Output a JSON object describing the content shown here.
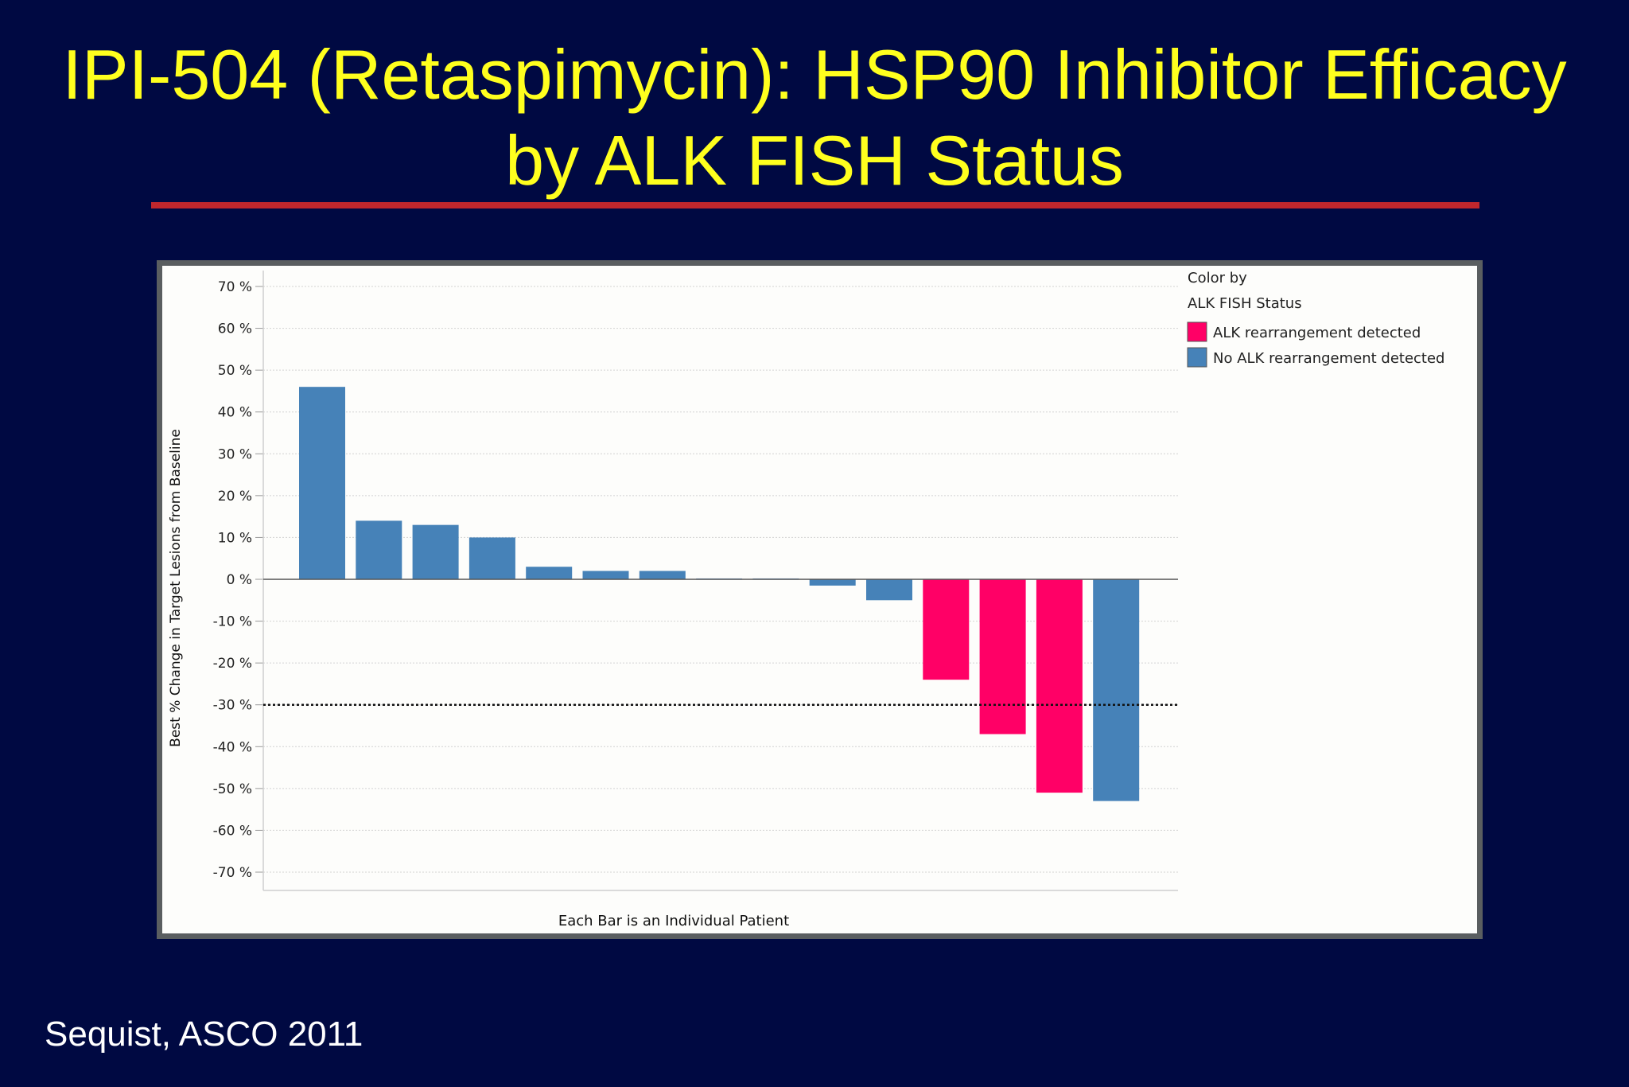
{
  "slide": {
    "title_line1": "IPI-504 (Retaspimycin): HSP90 Inhibitor Efficacy",
    "title_line2": "by ALK FISH Status",
    "citation": "Sequist, ASCO 2011"
  },
  "colors": {
    "background": "#000942",
    "title": "#ffff1e",
    "rule": "#c0272d",
    "alk_detected": "#ff0066",
    "no_alk_detected": "#4682b8"
  },
  "chart_data": {
    "type": "bar",
    "xlabel": "Each Bar is an Individual Patient",
    "ylabel": "Best % Change in Target Lesions from Baseline",
    "ylim": [
      -70,
      70
    ],
    "yticks": [
      "70 %",
      "60 %",
      "50 %",
      "40 %",
      "30 %",
      "20 %",
      "10 %",
      "0 %",
      "-10 %",
      "-20 %",
      "-30 %",
      "-40 %",
      "-50 %",
      "-60 %",
      "-70 %"
    ],
    "ytick_values": [
      70,
      60,
      50,
      40,
      30,
      20,
      10,
      0,
      -10,
      -20,
      -30,
      -40,
      -50,
      -60,
      -70
    ],
    "reference_line": -30,
    "grid": true,
    "legend_placement": "top-right",
    "legend_title_line1": "Color by",
    "legend_title_line2": "ALK FISH Status",
    "legend": [
      {
        "label": "ALK rearrangement detected",
        "color": "#ff0066"
      },
      {
        "label": "No ALK rearrangement detected",
        "color": "#4682b8"
      }
    ],
    "bars": [
      {
        "value": 46,
        "group": 1
      },
      {
        "value": 14,
        "group": 1
      },
      {
        "value": 13,
        "group": 1
      },
      {
        "value": 10,
        "group": 1
      },
      {
        "value": 3,
        "group": 1
      },
      {
        "value": 2,
        "group": 1
      },
      {
        "value": 2,
        "group": 1
      },
      {
        "value": 0.2,
        "group": 1
      },
      {
        "value": 0.2,
        "group": 1
      },
      {
        "value": -1.5,
        "group": 1
      },
      {
        "value": -5,
        "group": 1
      },
      {
        "value": -24,
        "group": 0
      },
      {
        "value": -37,
        "group": 0
      },
      {
        "value": -51,
        "group": 0
      },
      {
        "value": -53,
        "group": 1
      }
    ]
  }
}
